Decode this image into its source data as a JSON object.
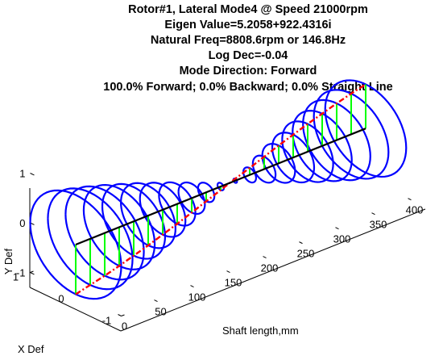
{
  "chart_data": {
    "type": "3d-line",
    "title_lines": [
      "Rotor#1, Lateral Mode4 @ Speed 21000rpm",
      "Eigen Value=5.2058+922.4316i",
      "Natural Freq=8808.6rpm or 146.8Hz",
      "Log Dec=-0.04",
      "Mode Direction: Forward",
      "100.0% Forward; 0.0% Backward; 0.0% Straight Line"
    ],
    "xlabel": "Shaft length,mm",
    "ylabel_x": "X Def",
    "ylabel_y": "Y Def",
    "shaft_ticks": [
      "0",
      "50",
      "100",
      "150",
      "200",
      "250",
      "300",
      "350",
      "400"
    ],
    "xdef_ticks": [
      "1",
      "0",
      "-1"
    ],
    "ydef_ticks": [
      "1",
      "0",
      "-1"
    ],
    "shaft_range": [
      0,
      420
    ],
    "def_range": [
      -1,
      1
    ],
    "stations_mm": [
      0,
      20,
      40,
      60,
      80,
      100,
      120,
      140,
      160,
      180,
      200,
      220,
      240,
      260,
      280,
      300,
      320,
      340,
      360,
      380,
      400
    ],
    "orbit_radius": [
      1.0,
      0.93,
      0.86,
      0.78,
      0.69,
      0.6,
      0.5,
      0.4,
      0.29,
      0.18,
      0.07,
      0.04,
      0.14,
      0.25,
      0.36,
      0.46,
      0.56,
      0.65,
      0.74,
      0.82,
      0.89
    ],
    "mode_deflection": [
      -1.0,
      -0.93,
      -0.86,
      -0.78,
      -0.69,
      -0.6,
      -0.5,
      -0.4,
      -0.29,
      -0.18,
      -0.07,
      0.04,
      0.14,
      0.25,
      0.36,
      0.46,
      0.56,
      0.65,
      0.74,
      0.82,
      0.89
    ],
    "colors": {
      "orbit": "#0000ff",
      "shaft_centerline": "#000000",
      "deflected_line": "#ff0000",
      "connector": "#00ff00"
    }
  }
}
